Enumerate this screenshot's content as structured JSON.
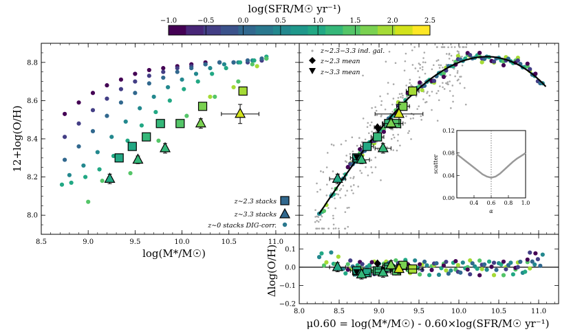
{
  "colorbar": {
    "label": "log(SFR/M☉ yr⁻¹)",
    "ticks": [
      "−1.0",
      "−0.5",
      "0.0",
      "0.5",
      "1.0",
      "1.5",
      "2.0",
      "2.5"
    ],
    "range": [
      -1.0,
      2.5
    ],
    "bins": 16,
    "colormap": [
      "#440154",
      "#482677",
      "#433e85",
      "#3b528b",
      "#31688e",
      "#2a788e",
      "#23888e",
      "#1f988b",
      "#22a884",
      "#35b779",
      "#54c568",
      "#7ad151",
      "#a5db36",
      "#d2e21b",
      "#fde725"
    ]
  },
  "chart_data": [
    {
      "id": "left",
      "type": "scatter",
      "xlabel": "log(M*/M☉)",
      "ylabel": "12+log(O/H)",
      "xlim": [
        8.5,
        11.25
      ],
      "ylim": [
        7.9,
        8.9
      ],
      "xticks": [
        "8.5",
        "9.0",
        "9.5",
        "10.0",
        "10.5",
        "11.0"
      ],
      "yticks": [
        "8.0",
        "8.2",
        "8.4",
        "8.6",
        "8.8"
      ],
      "legend_position": "bottom-right",
      "legend": [
        {
          "label": "z∼2.3 stacks",
          "marker": "square"
        },
        {
          "label": "z∼3.3 stacks",
          "marker": "triangle"
        },
        {
          "label": "z∼0 stacks DIG-corr.",
          "marker": "circle"
        }
      ],
      "series": [
        {
          "sfr": -1.0,
          "x": [
            8.75,
            8.9,
            9.05,
            9.2,
            9.35,
            9.5,
            9.65,
            9.8,
            9.95,
            10.1,
            10.25,
            10.4,
            10.55,
            10.7,
            10.85
          ],
          "y": [
            8.53,
            8.59,
            8.64,
            8.68,
            8.71,
            8.74,
            8.76,
            8.77,
            8.78,
            8.79,
            8.8,
            8.8,
            8.8,
            8.81,
            8.81
          ]
        },
        {
          "sfr": -0.5,
          "x": [
            8.75,
            8.9,
            9.05,
            9.2,
            9.35,
            9.5,
            9.65,
            9.8,
            9.95,
            10.1,
            10.25,
            10.4,
            10.55,
            10.7,
            10.85
          ],
          "y": [
            8.41,
            8.48,
            8.55,
            8.61,
            8.66,
            8.7,
            8.73,
            8.75,
            8.77,
            8.78,
            8.79,
            8.8,
            8.8,
            8.8,
            8.81
          ]
        },
        {
          "sfr": 0.0,
          "x": [
            8.75,
            8.9,
            9.05,
            9.2,
            9.35,
            9.5,
            9.65,
            9.8,
            9.95,
            10.1,
            10.25,
            10.4,
            10.55,
            10.7,
            10.85
          ],
          "y": [
            8.29,
            8.36,
            8.44,
            8.52,
            8.59,
            8.64,
            8.69,
            8.72,
            8.75,
            8.77,
            8.79,
            8.8,
            8.8,
            8.81,
            8.82
          ]
        },
        {
          "sfr": 0.5,
          "x": [
            8.8,
            8.95,
            9.1,
            9.25,
            9.4,
            9.55,
            9.7,
            9.85,
            10.0,
            10.15,
            10.3,
            10.45,
            10.6,
            10.75,
            10.9
          ],
          "y": [
            8.21,
            8.26,
            8.33,
            8.41,
            8.49,
            8.56,
            8.62,
            8.67,
            8.71,
            8.74,
            8.77,
            8.79,
            8.8,
            8.81,
            8.82
          ]
        },
        {
          "sfr": 1.0,
          "x": [
            8.72,
            8.82,
            8.97,
            9.12,
            9.27,
            9.42,
            9.57,
            9.72,
            9.87,
            10.02,
            10.17,
            10.32,
            10.47,
            10.62,
            10.77,
            10.9
          ],
          "y": [
            8.16,
            8.17,
            8.2,
            8.24,
            8.31,
            8.39,
            8.47,
            8.54,
            8.6,
            8.66,
            8.7,
            8.74,
            8.77,
            8.8,
            8.81,
            8.83
          ]
        },
        {
          "sfr": 1.5,
          "x": [
            9.0,
            9.15,
            9.45,
            9.75,
            10.05,
            10.35,
            10.6,
            10.75,
            10.9
          ],
          "y": [
            8.07,
            8.18,
            8.22,
            8.39,
            8.52,
            8.62,
            8.7,
            8.79,
            8.82
          ]
        },
        {
          "sfr": 2.0,
          "x": [
            10.3,
            10.55,
            10.8
          ],
          "y": [
            8.62,
            8.67,
            8.78
          ]
        }
      ],
      "stacks_z23": {
        "x": [
          9.33,
          9.47,
          9.62,
          9.77,
          9.98,
          10.22,
          10.65
        ],
        "y": [
          8.3,
          8.36,
          8.41,
          8.48,
          8.48,
          8.57,
          8.65
        ],
        "yerr": [
          0.02,
          0.02,
          0.02,
          0.02,
          0.02,
          0.02,
          0.02
        ],
        "sfr": [
          0.9,
          1.0,
          1.1,
          1.2,
          1.4,
          1.6,
          1.9
        ]
      },
      "stacks_z33": {
        "x": [
          9.23,
          9.53,
          9.82,
          10.2,
          10.62
        ],
        "y": [
          8.19,
          8.29,
          8.35,
          8.48,
          8.53
        ],
        "xerr": [
          0.0,
          0.0,
          0.0,
          0.0,
          0.2
        ],
        "yerr": [
          0.025,
          0.02,
          0.025,
          0.025,
          0.05
        ],
        "sfr": [
          1.0,
          1.1,
          1.3,
          1.6,
          2.1
        ]
      }
    },
    {
      "id": "right",
      "type": "scatter",
      "ylim": [
        7.9,
        8.9
      ],
      "legend_position": "top-left",
      "legend": [
        {
          "label": "z∼2.3−3.3 ind. gal.",
          "marker": "dot"
        },
        {
          "label": "z∼2.3 mean",
          "marker": "diamond"
        },
        {
          "label": "z∼3.3 mean",
          "marker": "triangle-down"
        }
      ],
      "fit_curve_x": [
        8.25,
        11.1
      ],
      "fmr_points_x": [
        8.25,
        8.4,
        8.55,
        8.7,
        8.85,
        9.0,
        9.15,
        9.3,
        9.45,
        9.6,
        9.75,
        9.9,
        10.05,
        10.2,
        10.35,
        10.5,
        10.65,
        10.8,
        10.95,
        11.05
      ],
      "mean_z23": {
        "x": 8.98,
        "y": 8.46,
        "xerr": 0.04,
        "yerr": 0.02
      },
      "mean_z33": {
        "x": 8.72,
        "y": 8.3,
        "xerr": 0.03,
        "yerr": 0.02
      },
      "stacks_z23": {
        "x": [
          8.72,
          8.85,
          8.98,
          9.12,
          9.22,
          9.3,
          9.42
        ],
        "y": [
          8.3,
          8.36,
          8.41,
          8.48,
          8.48,
          8.57,
          8.65
        ],
        "xerr": [
          0.08,
          0.08,
          0.08,
          0.08,
          0.08,
          0.08,
          0.08
        ],
        "yerr": [
          0.02,
          0.02,
          0.02,
          0.02,
          0.02,
          0.02,
          0.02
        ],
        "sfr": [
          0.9,
          1.0,
          1.1,
          1.2,
          1.4,
          1.6,
          1.9
        ]
      },
      "stacks_z33": {
        "x": [
          8.48,
          8.78,
          9.05,
          9.15,
          9.25
        ],
        "y": [
          8.19,
          8.29,
          8.35,
          8.48,
          8.53
        ],
        "xerr": [
          0.1,
          0.1,
          0.1,
          0.1,
          0.3
        ],
        "yerr": [
          0.025,
          0.02,
          0.025,
          0.025,
          0.05
        ],
        "sfr": [
          1.0,
          1.1,
          1.3,
          1.6,
          2.1
        ]
      }
    },
    {
      "id": "residual",
      "type": "scatter",
      "xlabel": "μ0.60 = log(M*/M☉) - 0.60×log(SFR/M☉ yr⁻¹)",
      "ylabel": "Δlog(O/H)",
      "xlim": [
        8.0,
        11.25
      ],
      "ylim": [
        -0.2,
        0.18
      ],
      "xticks": [
        "8.0",
        "8.5",
        "9.0",
        "9.5",
        "10.0",
        "10.5",
        "11.0"
      ],
      "yticks": [
        "−0.2",
        "−0.1",
        "0.0",
        "0.1"
      ],
      "zero_line": true
    },
    {
      "id": "inset",
      "type": "line",
      "xlabel": "α",
      "ylabel": "scatter",
      "xlim": [
        0.2,
        1.0
      ],
      "ylim": [
        0.0,
        0.12
      ],
      "xticks": [
        "0.4",
        "0.6",
        "0.8",
        "1.0"
      ],
      "yticks": [
        "0.00",
        "0.04",
        "0.08",
        "0.12"
      ],
      "x": [
        0.2,
        0.25,
        0.3,
        0.35,
        0.4,
        0.45,
        0.5,
        0.55,
        0.6,
        0.65,
        0.7,
        0.75,
        0.8,
        0.85,
        0.9,
        0.95,
        1.0
      ],
      "y": [
        0.078,
        0.072,
        0.066,
        0.06,
        0.054,
        0.048,
        0.042,
        0.038,
        0.036,
        0.038,
        0.043,
        0.05,
        0.057,
        0.064,
        0.07,
        0.075,
        0.08
      ],
      "vline_x": 0.6
    }
  ]
}
